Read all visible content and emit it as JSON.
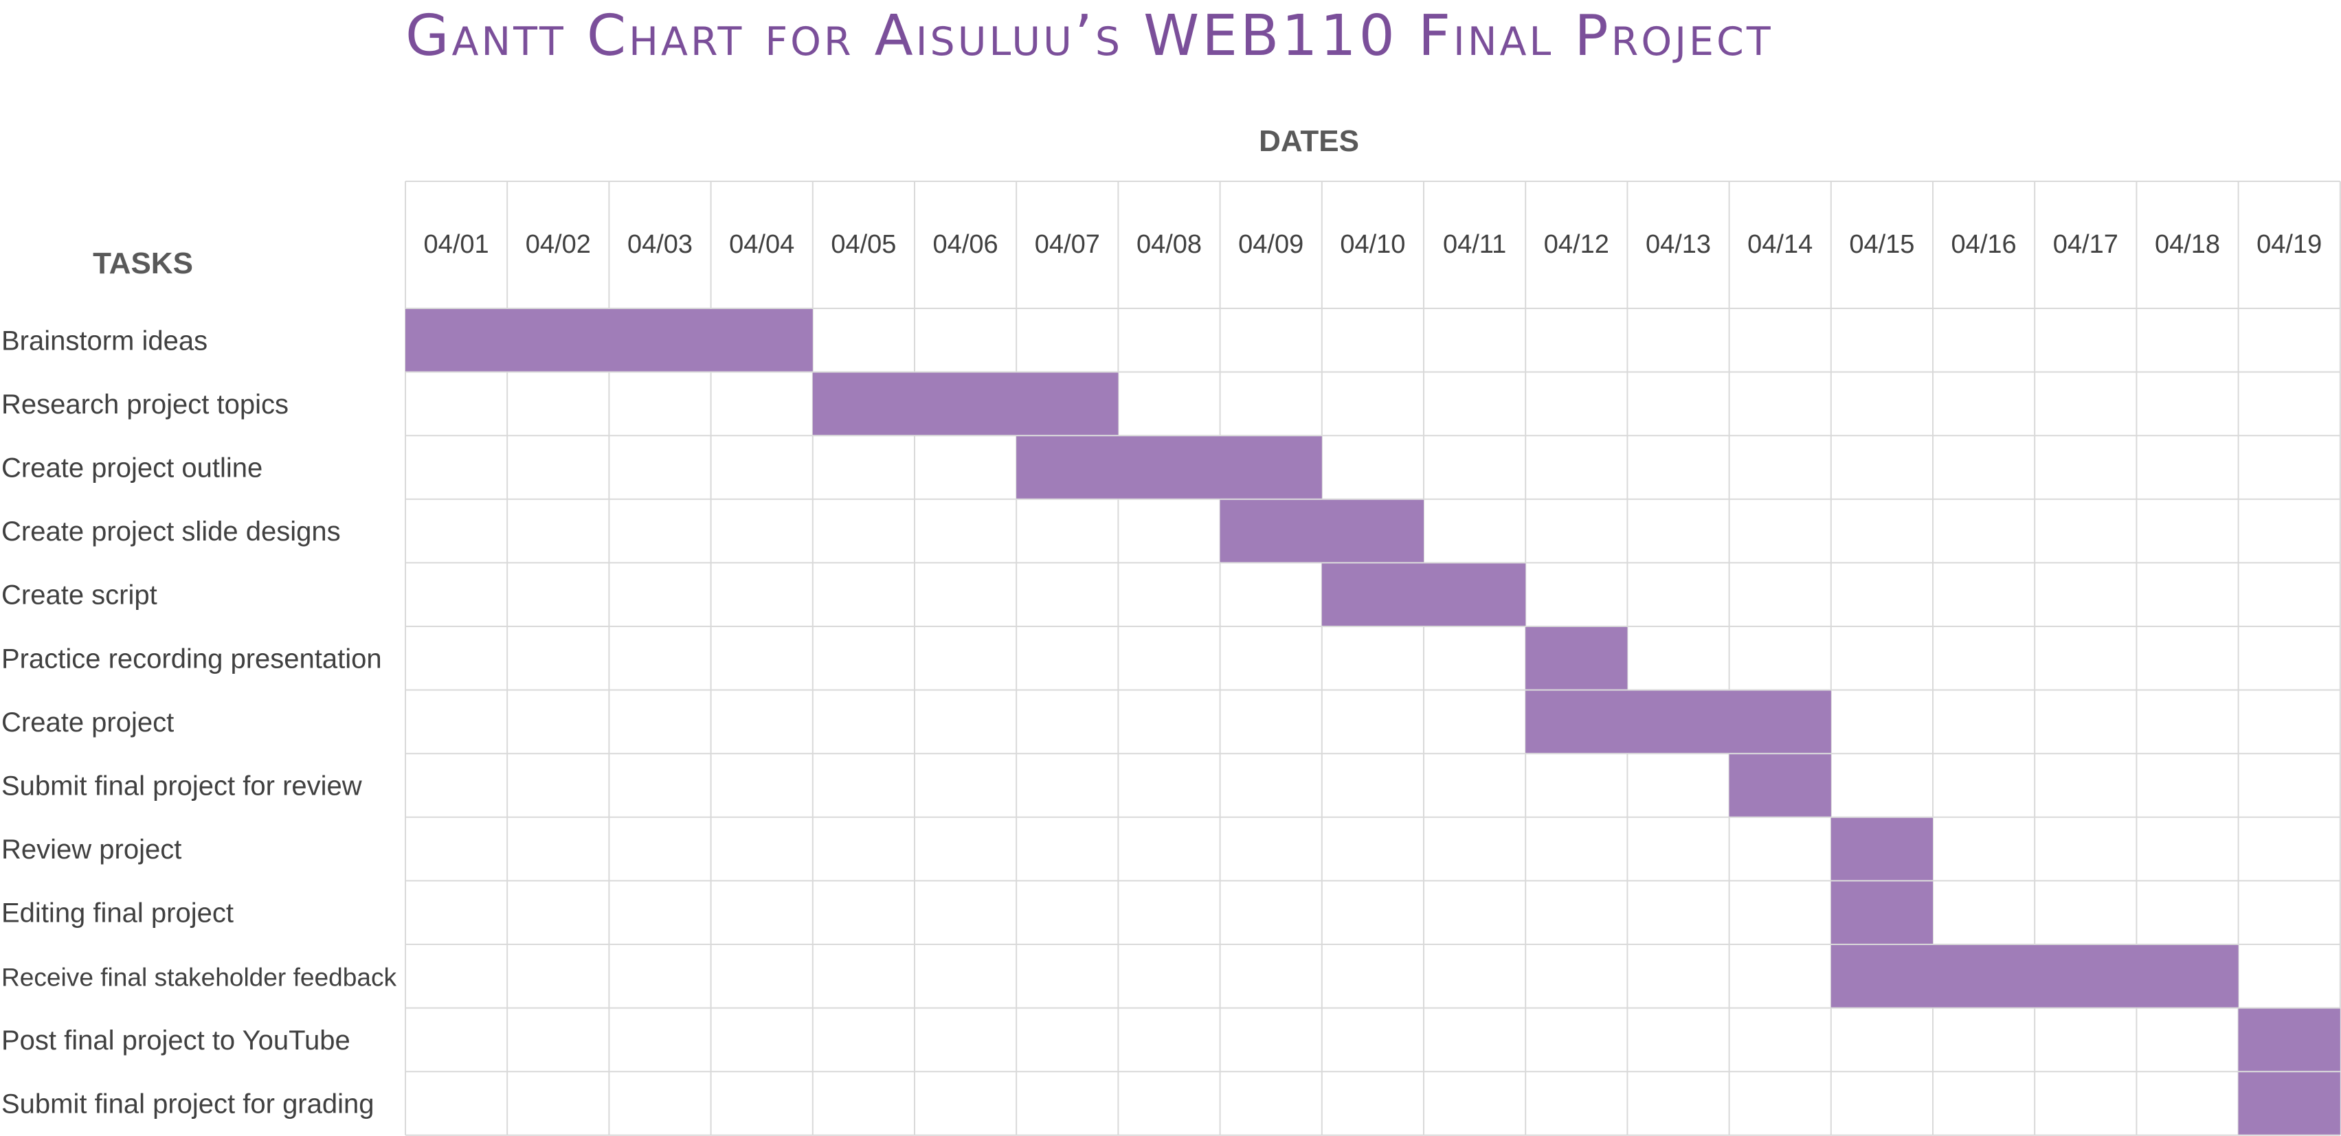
{
  "chart_data": {
    "type": "gantt",
    "title": "Gantt Chart for Aisuluu’s WEB110 Final Project",
    "dates_label": "DATES",
    "tasks_label": "TASKS",
    "dates": [
      "04/01",
      "04/02",
      "04/03",
      "04/04",
      "04/05",
      "04/06",
      "04/07",
      "04/08",
      "04/09",
      "04/10",
      "04/11",
      "04/12",
      "04/13",
      "04/14",
      "04/15",
      "04/16",
      "04/17",
      "04/18",
      "04/19"
    ],
    "tasks": [
      {
        "name": "Brainstorm ideas",
        "start": "04/01",
        "end": "04/04"
      },
      {
        "name": "Research project topics",
        "start": "04/05",
        "end": "04/07"
      },
      {
        "name": "Create project outline",
        "start": "04/07",
        "end": "04/09"
      },
      {
        "name": "Create project slide designs",
        "start": "04/09",
        "end": "04/10"
      },
      {
        "name": "Create script",
        "start": "04/10",
        "end": "04/11"
      },
      {
        "name": "Practice recording presentation",
        "start": "04/12",
        "end": "04/12"
      },
      {
        "name": "Create project",
        "start": "04/12",
        "end": "04/14"
      },
      {
        "name": "Submit final project for review",
        "start": "04/14",
        "end": "04/14"
      },
      {
        "name": "Review project",
        "start": "04/15",
        "end": "04/15"
      },
      {
        "name": "Editing final project",
        "start": "04/15",
        "end": "04/15"
      },
      {
        "name": "Receive final stakeholder feedback",
        "start": "04/15",
        "end": "04/18"
      },
      {
        "name": "Post final project to YouTube",
        "start": "04/19",
        "end": "04/19"
      },
      {
        "name": "Submit final project for grading",
        "start": "04/19",
        "end": "04/19"
      }
    ],
    "colors": {
      "bar": "#a07db8",
      "title": "#7b4f9a",
      "grid": "#d9d9d9",
      "text": "#404040",
      "header": "#595959"
    }
  }
}
